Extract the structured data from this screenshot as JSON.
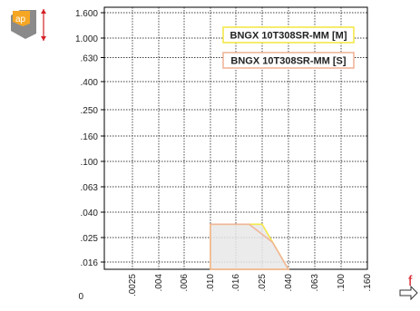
{
  "chart_data": {
    "type": "area",
    "y_axis": {
      "scale": "categorical-log",
      "tick_labels": [
        "1.600",
        "1.000",
        ".630",
        ".400",
        ".250",
        ".160",
        ".100",
        ".063",
        ".040",
        ".025",
        ".016",
        "0"
      ]
    },
    "x_axis": {
      "scale": "categorical-log",
      "tick_labels": [
        ".0025",
        ".004",
        ".006",
        ".010",
        ".016",
        ".025",
        ".040",
        ".063",
        ".100",
        ".160"
      ],
      "label": "f"
    },
    "y_axis_icon_label": "ap",
    "grid": true,
    "series": [
      {
        "name": "BNGX 10T308SR-MM [M]",
        "color": "#f3e84a",
        "fill": "#e8e8e8",
        "points": [
          [
            0.01,
            0.032
          ],
          [
            0.025,
            0.032
          ],
          [
            0.04,
            0.014
          ],
          [
            0.01,
            0.014
          ]
        ]
      },
      {
        "name": "BNGX 10T308SR-MM [S]",
        "color": "#f0b59b",
        "fill": "none",
        "points": [
          [
            0.01,
            0.032
          ],
          [
            0.02,
            0.032
          ],
          [
            0.03,
            0.023
          ],
          [
            0.04,
            0.014
          ],
          [
            0.01,
            0.014
          ]
        ]
      }
    ],
    "legend": {
      "placement": "top-right"
    }
  },
  "colors": {
    "grid": "#000000",
    "icon_orange": "#f5a623",
    "icon_red": "#d51f26",
    "icon_gray": "#8a8a8a"
  }
}
